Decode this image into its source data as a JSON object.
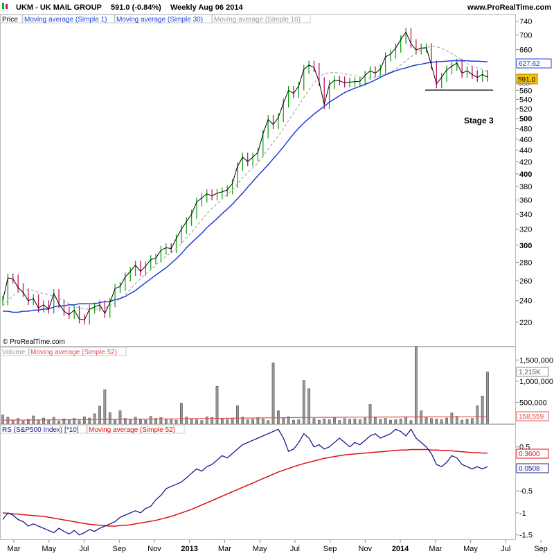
{
  "header": {
    "symbol_title": "UKM - UK MAIL GROUP",
    "quote": "591.0 (-0.84%)",
    "timeframe_date": "Weekly  Aug 06 2014",
    "brand_url": "www.ProRealTime.com"
  },
  "price_panel": {
    "legend": {
      "price": "Price",
      "ma1": "Moving average (Simple 1)",
      "ma30": "Moving average (Simple 30)",
      "ma10": "Moving average (Simple 10)"
    },
    "copyright": "© ProRealTime.com",
    "annotation": "Stage 3",
    "ma30_value_label": "627.62",
    "last_price_label": "591.0",
    "hidden_axis_label": "580"
  },
  "volume_panel": {
    "legend": {
      "volume": "Volume",
      "ma52": "Moving average (Simple 52)"
    },
    "last_volume_label": "1,215K",
    "ma52_value_label": "158,559"
  },
  "rs_panel": {
    "legend": {
      "rs": "RS (S&P500 Index) [*10]",
      "ma52": "Moving average (Simple 52)"
    },
    "ma52_value_label": "0.3600",
    "rs_value_label": "0.0508"
  },
  "x_axis_labels": [
    "Mar",
    "May",
    "Jul",
    "Sep",
    "Nov",
    "2013",
    "Mar",
    "May",
    "Jul",
    "Sep",
    "Nov",
    "2014",
    "Mar",
    "May",
    "Jul",
    "Sep"
  ],
  "colors": {
    "up_bar": "#14a314",
    "down_bar": "#c8105a",
    "ma30": "#1a3fd6",
    "ma10": "#aaaaaa",
    "ma1": "#000000",
    "volume_ma": "#e05050",
    "rs_line": "#18188c",
    "rs_ma": "#e01010",
    "last_price_bg": "#f5c400",
    "neutral_bar": "#7a7a7a"
  },
  "chart_data": [
    {
      "type": "line",
      "panel": "price",
      "scale": "log",
      "ylim": [
        200,
        760
      ],
      "y_ticks": [
        220,
        240,
        260,
        280,
        300,
        320,
        340,
        360,
        380,
        400,
        420,
        440,
        460,
        480,
        500,
        520,
        540,
        560,
        580,
        620,
        660,
        700,
        740
      ],
      "y_ticks_bold": [
        300,
        400,
        500
      ],
      "x_labels": [
        "Mar",
        "May",
        "Jul",
        "Sep",
        "Nov",
        "2013",
        "Mar",
        "May",
        "Jul",
        "Sep",
        "Nov",
        "2014",
        "Mar",
        "May",
        "Jul",
        "Sep"
      ],
      "series": [
        {
          "name": "Moving average (Simple 1)",
          "values": [
            240,
            263,
            262,
            253,
            248,
            240,
            242,
            233,
            236,
            232,
            247,
            237,
            230,
            227,
            231,
            223,
            222,
            232,
            234,
            236,
            228,
            238,
            252,
            254,
            264,
            270,
            277,
            270,
            276,
            283,
            285,
            294,
            297,
            296,
            308,
            320,
            330,
            340,
            357,
            363,
            369,
            366,
            370,
            372,
            375,
            385,
            412,
            428,
            420,
            428,
            436,
            470,
            498,
            488,
            502,
            532,
            560,
            553,
            570,
            609,
            620,
            614,
            580,
            529,
            573,
            583,
            582,
            577,
            579,
            580,
            581,
            595,
            606,
            600,
            610,
            641,
            648,
            664,
            687,
            708,
            676,
            659,
            664,
            665,
            620,
            575,
            590,
            608,
            617,
            625,
            600,
            606,
            597,
            590,
            597,
            591
          ],
          "color": "#000000"
        },
        {
          "name": "Moving average (Simple 30)",
          "values": [
            230,
            230,
            229,
            229,
            230,
            230,
            231,
            231,
            232,
            232,
            234,
            235,
            235,
            236,
            236,
            237,
            237,
            237,
            237,
            238,
            239,
            239,
            241,
            242,
            244,
            247,
            250,
            254,
            258,
            262,
            266,
            270,
            274,
            279,
            284,
            290,
            297,
            303,
            309,
            315,
            322,
            328,
            334,
            341,
            347,
            354,
            362,
            370,
            379,
            388,
            397,
            406,
            415,
            425,
            435,
            446,
            458,
            470,
            481,
            491,
            500,
            509,
            517,
            525,
            534,
            541,
            548,
            555,
            560,
            565,
            569,
            574,
            578,
            584,
            590,
            596,
            601,
            606,
            610,
            613,
            617,
            620,
            622,
            625,
            627,
            628,
            629,
            630,
            631,
            631,
            631,
            631,
            630,
            630,
            629,
            628
          ],
          "color": "#1a3fd6"
        },
        {
          "name": "Moving average (Simple 10)",
          "values": [
            235,
            240,
            245,
            248,
            250,
            251,
            250,
            248,
            247,
            246,
            244,
            242,
            240,
            237,
            235,
            233,
            232,
            232,
            232,
            232,
            233,
            235,
            238,
            242,
            246,
            251,
            257,
            262,
            267,
            272,
            277,
            282,
            287,
            291,
            296,
            302,
            309,
            316,
            324,
            332,
            341,
            348,
            355,
            362,
            368,
            375,
            384,
            394,
            402,
            410,
            418,
            430,
            442,
            454,
            466,
            480,
            496,
            511,
            527,
            544,
            561,
            577,
            591,
            599,
            601,
            602,
            600,
            598,
            596,
            594,
            591,
            589,
            588,
            590,
            594,
            598,
            603,
            610,
            620,
            631,
            641,
            651,
            659,
            665,
            669,
            668,
            663,
            657,
            649,
            641,
            632,
            624,
            617,
            613,
            609,
            604
          ],
          "color": "#aaaaaa"
        }
      ],
      "annotations": [
        "Stage 3"
      ],
      "right_labels": [
        "627.62",
        "591.0"
      ]
    },
    {
      "type": "bar",
      "panel": "volume",
      "ylim": [
        0,
        1800000
      ],
      "y_ticks": [
        500000,
        1000000,
        1500000
      ],
      "y_tick_labels": [
        "500,000",
        "1,000,000",
        "1,500,000"
      ],
      "series": [
        {
          "name": "Volume",
          "values": [
            200,
            150,
            80,
            120,
            60,
            100,
            180,
            90,
            130,
            70,
            150,
            60,
            110,
            90,
            120,
            70,
            160,
            130,
            230,
            410,
            800,
            260,
            80,
            300,
            120,
            90,
            150,
            110,
            80,
            170,
            120,
            140,
            110,
            90,
            80,
            480,
            150,
            100,
            90,
            70,
            160,
            140,
            880,
            120,
            100,
            130,
            420,
            150,
            90,
            100,
            140,
            110,
            70,
            1430,
            300,
            120,
            160,
            80,
            90,
            1020,
            820,
            120,
            80,
            110,
            90,
            150,
            70,
            120,
            100,
            110,
            90,
            130,
            450,
            140,
            100,
            120,
            80,
            90,
            110,
            150,
            70,
            1820,
            300,
            160,
            120,
            110,
            90,
            130,
            250,
            170,
            80,
            100,
            120,
            420,
            650,
            1215
          ]
        },
        {
          "name": "Moving average (Simple 52)",
          "values": [
            80,
            80,
            81,
            82,
            82,
            83,
            84,
            85,
            86,
            86,
            87,
            88,
            89,
            90,
            91,
            91,
            92,
            93,
            94,
            95,
            96,
            97,
            98,
            99,
            100,
            101,
            102,
            103,
            104,
            106,
            107,
            108,
            109,
            110,
            111,
            113,
            114,
            115,
            116,
            118,
            119,
            120,
            121,
            123,
            124,
            125,
            127,
            128,
            129,
            130,
            131,
            133,
            134,
            135,
            136,
            137,
            139,
            140,
            141,
            142,
            143,
            144,
            145,
            146,
            147,
            148,
            148,
            149,
            150,
            150,
            151,
            151,
            152,
            152,
            153,
            153,
            154,
            154,
            155,
            155,
            156,
            156,
            156,
            157,
            157,
            157,
            158,
            158,
            158,
            158,
            158,
            158,
            159,
            159,
            159,
            158.559
          ]
        }
      ],
      "units": "thousands",
      "right_labels": [
        "1,215K",
        "158,559"
      ]
    },
    {
      "type": "line",
      "panel": "rs",
      "ylim": [
        -1.6,
        1.0
      ],
      "y_ticks": [
        0.5,
        -0.5,
        -1,
        -1.5
      ],
      "series": [
        {
          "name": "RS (S&P500 Index) [*10]",
          "values": [
            -1.15,
            -1.0,
            -1.05,
            -1.15,
            -1.2,
            -1.3,
            -1.25,
            -1.3,
            -1.35,
            -1.4,
            -1.45,
            -1.35,
            -1.42,
            -1.48,
            -1.4,
            -1.5,
            -1.45,
            -1.38,
            -1.42,
            -1.35,
            -1.3,
            -1.25,
            -1.2,
            -1.1,
            -1.05,
            -1.0,
            -0.95,
            -1.0,
            -0.9,
            -0.85,
            -0.7,
            -0.6,
            -0.45,
            -0.4,
            -0.35,
            -0.3,
            -0.2,
            -0.1,
            0.0,
            -0.05,
            0.05,
            0.1,
            0.2,
            0.3,
            0.25,
            0.35,
            0.45,
            0.55,
            0.6,
            0.65,
            0.7,
            0.75,
            0.8,
            0.85,
            0.9,
            0.7,
            0.4,
            0.45,
            0.6,
            0.8,
            0.7,
            0.5,
            0.55,
            0.45,
            0.5,
            0.6,
            0.7,
            0.6,
            0.5,
            0.6,
            0.55,
            0.65,
            0.75,
            0.8,
            0.7,
            0.75,
            0.8,
            0.9,
            0.85,
            0.75,
            0.9,
            0.7,
            0.6,
            0.5,
            0.35,
            0.1,
            0.05,
            0.15,
            0.3,
            0.25,
            0.1,
            0.05,
            0.0,
            0.05,
            0.0,
            0.0508
          ],
          "color": "#18188c"
        },
        {
          "name": "Moving average (Simple 52)",
          "values": [
            -1.0,
            -1.01,
            -1.02,
            -1.03,
            -1.04,
            -1.05,
            -1.06,
            -1.07,
            -1.08,
            -1.1,
            -1.12,
            -1.14,
            -1.16,
            -1.18,
            -1.2,
            -1.22,
            -1.24,
            -1.26,
            -1.27,
            -1.28,
            -1.29,
            -1.3,
            -1.3,
            -1.29,
            -1.28,
            -1.27,
            -1.25,
            -1.23,
            -1.21,
            -1.19,
            -1.17,
            -1.14,
            -1.11,
            -1.08,
            -1.04,
            -1.0,
            -0.96,
            -0.92,
            -0.87,
            -0.82,
            -0.77,
            -0.72,
            -0.67,
            -0.62,
            -0.57,
            -0.52,
            -0.47,
            -0.42,
            -0.37,
            -0.32,
            -0.27,
            -0.22,
            -0.17,
            -0.12,
            -0.07,
            -0.03,
            0.01,
            0.05,
            0.09,
            0.12,
            0.15,
            0.18,
            0.21,
            0.24,
            0.26,
            0.28,
            0.3,
            0.32,
            0.33,
            0.34,
            0.35,
            0.36,
            0.37,
            0.38,
            0.39,
            0.4,
            0.41,
            0.42,
            0.43,
            0.43,
            0.44,
            0.44,
            0.44,
            0.44,
            0.43,
            0.43,
            0.42,
            0.42,
            0.41,
            0.4,
            0.39,
            0.38,
            0.37,
            0.37,
            0.36,
            0.36
          ],
          "color": "#e01010"
        }
      ],
      "right_labels": [
        "0.3600",
        "0.0508"
      ]
    }
  ]
}
